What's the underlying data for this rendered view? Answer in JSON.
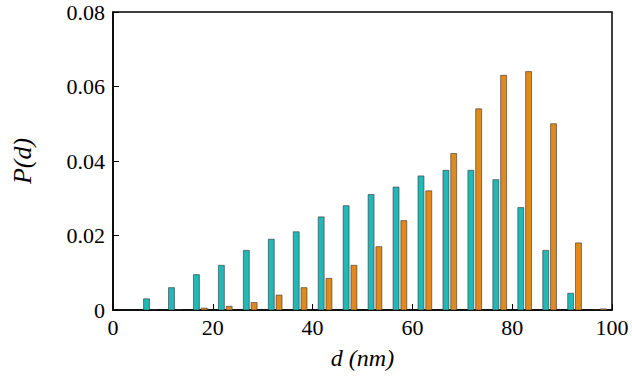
{
  "chart_data": {
    "type": "histogram",
    "xlabel": "d (nm)",
    "ylabel": "P(d)",
    "bins": [
      5,
      10,
      15,
      20,
      25,
      30,
      35,
      40,
      45,
      50,
      55,
      60,
      65,
      70,
      75,
      80,
      85,
      90,
      95,
      100
    ],
    "series": [
      {
        "color": "#22b8b8",
        "values": [
          0.003,
          0.006,
          0.0095,
          0.012,
          0.016,
          0.019,
          0.021,
          0.025,
          0.028,
          0.031,
          0.033,
          0.036,
          0.0375,
          0.0375,
          0.035,
          0.0275,
          0.016,
          0.0045,
          0
        ]
      },
      {
        "color": "#e0891c",
        "values": [
          0,
          0,
          0.0005,
          0.001,
          0.002,
          0.004,
          0.006,
          0.0085,
          0.012,
          0.017,
          0.024,
          0.032,
          0.042,
          0.054,
          0.063,
          0.064,
          0.05,
          0.018,
          0.0003
        ]
      }
    ],
    "xlim": [
      0,
      100
    ],
    "xticks": [
      0,
      20,
      40,
      60,
      80,
      100
    ],
    "ylim": [
      0,
      0.08
    ],
    "yticks": [
      0,
      0.02,
      0.04,
      0.06,
      0.08
    ],
    "grid": false
  }
}
